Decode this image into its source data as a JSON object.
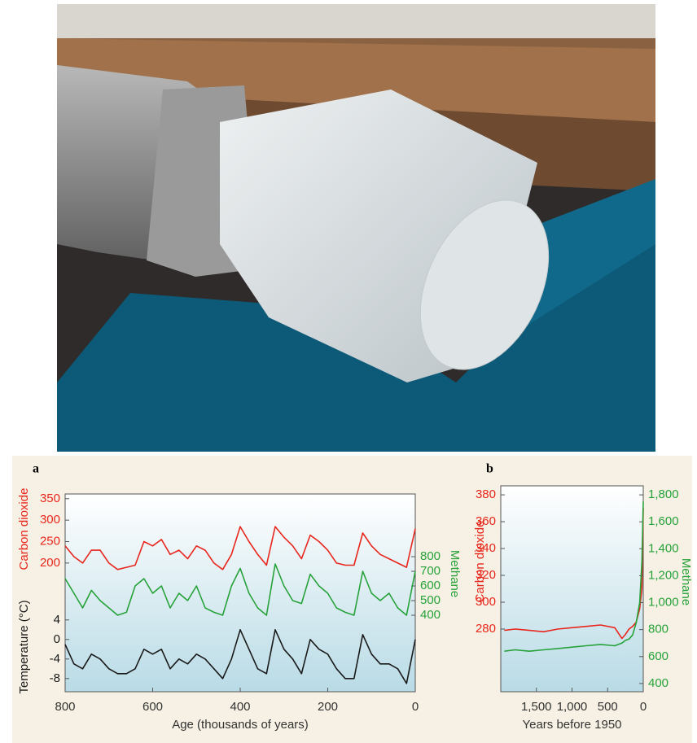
{
  "chart_data": [
    {
      "type": "line",
      "title": "a",
      "xlabel": "Age (thousands of years)",
      "x": [
        800,
        780,
        760,
        740,
        720,
        700,
        680,
        660,
        640,
        620,
        600,
        580,
        560,
        540,
        520,
        500,
        480,
        460,
        440,
        420,
        400,
        380,
        360,
        340,
        320,
        300,
        280,
        260,
        240,
        220,
        200,
        180,
        160,
        140,
        120,
        100,
        80,
        60,
        40,
        20,
        0
      ],
      "xlim": [
        800,
        0
      ],
      "xticks": [
        800,
        600,
        400,
        200,
        0
      ],
      "series": [
        {
          "name": "Carbon dioxide",
          "color": "#e8261c",
          "axis": "y",
          "ylim": [
            -100,
            361
          ],
          "yticks": [
            200,
            250,
            300,
            350
          ],
          "values": [
            240,
            215,
            200,
            230,
            230,
            200,
            185,
            190,
            195,
            250,
            240,
            255,
            220,
            230,
            210,
            240,
            230,
            200,
            185,
            220,
            285,
            250,
            220,
            195,
            285,
            260,
            240,
            210,
            265,
            250,
            230,
            200,
            195,
            195,
            270,
            240,
            220,
            210,
            200,
            190,
            280
          ]
        },
        {
          "name": "Methane",
          "color": "#27a23a",
          "axis": "y2",
          "ylim": [
            -122,
            1228
          ],
          "yticks": [
            400,
            500,
            600,
            700,
            800
          ],
          "values": [
            650,
            550,
            450,
            570,
            500,
            450,
            400,
            420,
            600,
            650,
            550,
            600,
            450,
            550,
            500,
            600,
            450,
            420,
            400,
            600,
            720,
            550,
            450,
            400,
            750,
            600,
            500,
            480,
            680,
            600,
            550,
            450,
            420,
            400,
            700,
            550,
            500,
            550,
            450,
            400,
            700
          ]
        },
        {
          "name": "Temperature (°C)",
          "color": "#1a1a1a",
          "axis": "y",
          "ylim": [
            -10.7,
            29.8
          ],
          "yticks": [
            -8,
            -4,
            0,
            4
          ],
          "values": [
            -1,
            -5,
            -6,
            -3,
            -4,
            -6,
            -7,
            -7,
            -6,
            -2,
            -3,
            -2,
            -6,
            -4,
            -5,
            -3,
            -4,
            -6,
            -8,
            -4,
            2,
            -2,
            -6,
            -7,
            2,
            -2,
            -4,
            -7,
            0,
            -2,
            -3,
            -6,
            -8,
            -8,
            1,
            -3,
            -5,
            -5,
            -6,
            -9,
            0
          ]
        }
      ]
    },
    {
      "type": "line",
      "title": "b",
      "xlabel": "Years before 1950",
      "x": [
        1950,
        1800,
        1600,
        1400,
        1200,
        1000,
        800,
        600,
        400,
        300,
        250,
        200,
        150,
        100,
        50,
        20,
        0
      ],
      "xlim": [
        2000,
        0
      ],
      "xticks": [
        {
          "value": 1500,
          "label": "1,500"
        },
        {
          "value": 1000,
          "label": "1,000"
        },
        500,
        0
      ],
      "series": [
        {
          "name": "Carbon dioxide",
          "color": "#e8261c",
          "axis": "y",
          "ylim": [
            233.3,
            386.7
          ],
          "yticks": [
            280,
            300,
            320,
            340,
            360,
            380
          ],
          "values": [
            279,
            280,
            279,
            278,
            280,
            281,
            282,
            283,
            281,
            273,
            276,
            280,
            282,
            285,
            295,
            310,
            370
          ]
        },
        {
          "name": "Methane",
          "color": "#27a23a",
          "axis": "y2",
          "ylim": [
            339,
            1867
          ],
          "yticks": [
            400,
            600,
            800,
            {
              "value": 1000,
              "label": "1,000"
            },
            {
              "value": 1200,
              "label": "1,200"
            },
            {
              "value": 1400,
              "label": "1,400"
            },
            {
              "value": 1600,
              "label": "1,600"
            },
            {
              "value": 1800,
              "label": "1,800"
            }
          ],
          "values": [
            640,
            650,
            640,
            650,
            660,
            670,
            680,
            690,
            680,
            700,
            720,
            730,
            760,
            850,
            1000,
            1300,
            1750
          ]
        }
      ]
    }
  ]
}
